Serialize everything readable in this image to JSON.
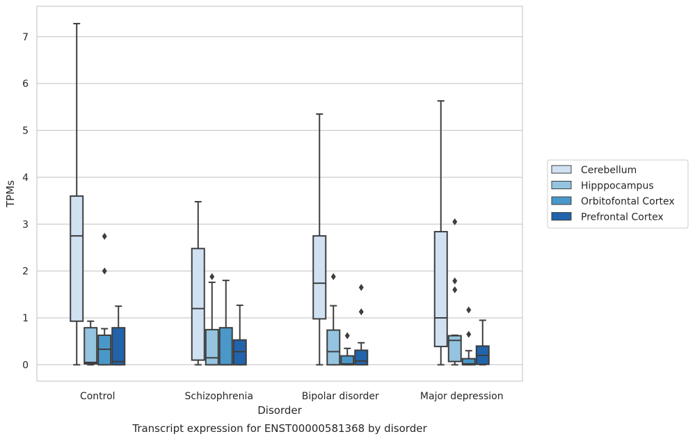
{
  "caption": "Transcript expression for ENST00000581368 by disorder",
  "chart_data": {
    "type": "box",
    "title": "",
    "xlabel": "Disorder",
    "ylabel": "TPMs",
    "ylim": [
      -0.35,
      7.65
    ],
    "yticks": [
      0,
      1,
      2,
      3,
      4,
      5,
      6,
      7
    ],
    "grid": "horizontal",
    "legend_position": "right",
    "categories": [
      "Control",
      "Schizophrenia",
      "Bipolar disorder",
      "Major depression"
    ],
    "series": [
      {
        "name": "Cerebellum",
        "color": "#d0e1f2",
        "boxes": [
          {
            "whisker_low": 0,
            "q1": 0.93,
            "median": 2.75,
            "q3": 3.6,
            "whisker_high": 7.28,
            "outliers": []
          },
          {
            "whisker_low": 0,
            "q1": 0.1,
            "median": 1.2,
            "q3": 2.48,
            "whisker_high": 3.48,
            "outliers": []
          },
          {
            "whisker_low": 0,
            "q1": 0.98,
            "median": 1.74,
            "q3": 2.75,
            "whisker_high": 5.35,
            "outliers": []
          },
          {
            "whisker_low": 0,
            "q1": 0.39,
            "median": 1.0,
            "q3": 2.84,
            "whisker_high": 5.63,
            "outliers": []
          }
        ]
      },
      {
        "name": "Hipppocampus",
        "color": "#94c4df",
        "boxes": [
          {
            "whisker_low": 0,
            "q1": 0.02,
            "median": 0.05,
            "q3": 0.79,
            "whisker_high": 0.93,
            "outliers": []
          },
          {
            "whisker_low": 0,
            "q1": 0.0,
            "median": 0.15,
            "q3": 0.75,
            "whisker_high": 1.76,
            "outliers": [
              1.88
            ]
          },
          {
            "whisker_low": 0,
            "q1": 0.0,
            "median": 0.28,
            "q3": 0.74,
            "whisker_high": 1.26,
            "outliers": [
              1.88
            ]
          },
          {
            "whisker_low": 0,
            "q1": 0.07,
            "median": 0.52,
            "q3": 0.62,
            "whisker_high": 0.63,
            "outliers": [
              1.6,
              1.79,
              3.05
            ]
          }
        ]
      },
      {
        "name": "Orbitofontal Cortex",
        "color": "#4a98c9",
        "boxes": [
          {
            "whisker_low": 0,
            "q1": 0.0,
            "median": 0.33,
            "q3": 0.63,
            "whisker_high": 0.77,
            "outliers": [
              2.0,
              2.74
            ]
          },
          {
            "whisker_low": 0,
            "q1": 0.0,
            "median": 0.0,
            "q3": 0.79,
            "whisker_high": 1.8,
            "outliers": []
          },
          {
            "whisker_low": 0,
            "q1": 0.0,
            "median": 0.02,
            "q3": 0.19,
            "whisker_high": 0.35,
            "outliers": [
              0.62
            ]
          },
          {
            "whisker_low": 0,
            "q1": 0.0,
            "median": 0.02,
            "q3": 0.13,
            "whisker_high": 0.3,
            "outliers": [
              0.65,
              1.17
            ]
          }
        ]
      },
      {
        "name": "Prefrontal Cortex",
        "color": "#2164ab",
        "boxes": [
          {
            "whisker_low": 0,
            "q1": 0.0,
            "median": 0.07,
            "q3": 0.79,
            "whisker_high": 1.25,
            "outliers": []
          },
          {
            "whisker_low": 0,
            "q1": 0.0,
            "median": 0.28,
            "q3": 0.53,
            "whisker_high": 1.27,
            "outliers": []
          },
          {
            "whisker_low": 0,
            "q1": 0.0,
            "median": 0.08,
            "q3": 0.31,
            "whisker_high": 0.47,
            "outliers": [
              1.13,
              1.65
            ]
          },
          {
            "whisker_low": 0,
            "q1": 0.01,
            "median": 0.2,
            "q3": 0.4,
            "whisker_high": 0.95,
            "outliers": []
          }
        ]
      }
    ]
  }
}
